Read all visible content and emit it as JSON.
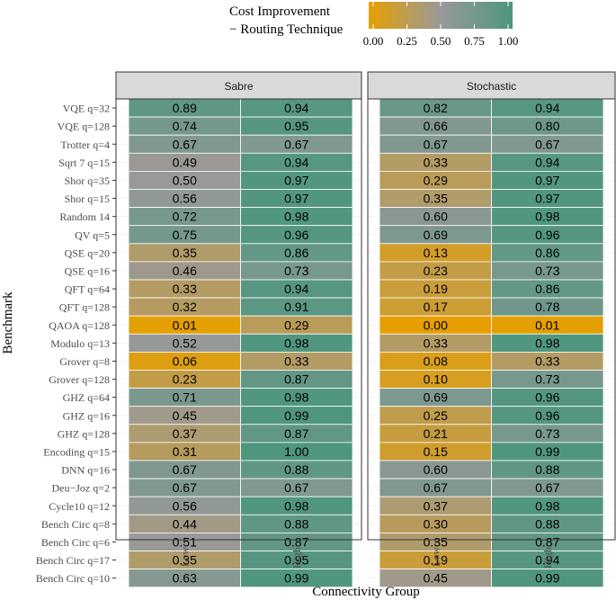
{
  "chart_data": {
    "type": "heatmap",
    "legend": {
      "title_line1": "Cost Improvement",
      "title_line2": "− Routing Technique",
      "ticks": [
        "0.00",
        "0.25",
        "0.50",
        "0.75",
        "1.00"
      ],
      "tick_values": [
        0,
        0.25,
        0.5,
        0.75,
        1
      ],
      "colors": {
        "low": "#E69F00",
        "mid": "#999999",
        "high": "#4E967E"
      },
      "placement": "top"
    },
    "xlabel": "Connectivity Group",
    "ylabel": "Benchmark",
    "x_categories": [
      "Low",
      "High"
    ],
    "panels": [
      "Sabre",
      "Stochastic"
    ],
    "benchmarks": [
      "VQE q=32",
      "VQE q=128",
      "Trotter q=4",
      "Sqrt 7 q=15",
      "Shor q=35",
      "Shor q=15",
      "Random 14",
      "QV q=5",
      "QSE q=20",
      "QSE q=16",
      "QFT q=64",
      "QFT q=128",
      "QAOA q=128",
      "Modulo q=13",
      "Grover q=8",
      "Grover q=128",
      "GHZ q=64",
      "GHZ q=16",
      "GHZ q=128",
      "Encoding q=15",
      "DNN q=16",
      "Deu−Joz q=2",
      "Cycle10 q=12",
      "Bench Circ q=8",
      "Bench Circ q=6",
      "Bench Circ q=17",
      "Bench Circ q=10"
    ],
    "values": {
      "Sabre": {
        "Low": [
          "0.89",
          "0.74",
          "0.67",
          "0.49",
          "0.50",
          "0.56",
          "0.72",
          "0.75",
          "0.35",
          "0.46",
          "0.33",
          "0.32",
          "0.01",
          "0.52",
          "0.06",
          "0.23",
          "0.71",
          "0.45",
          "0.37",
          "0.31",
          "0.67",
          "0.67",
          "0.56",
          "0.44",
          "0.51",
          "0.35",
          "0.63"
        ],
        "High": [
          "0.94",
          "0.95",
          "0.67",
          "0.94",
          "0.97",
          "0.97",
          "0.98",
          "0.96",
          "0.86",
          "0.73",
          "0.94",
          "0.91",
          "0.29",
          "0.98",
          "0.33",
          "0.87",
          "0.98",
          "0.99",
          "0.87",
          "1.00",
          "0.88",
          "0.67",
          "0.98",
          "0.88",
          "0.87",
          "0.95",
          "0.99"
        ]
      },
      "Stochastic": {
        "Low": [
          "0.82",
          "0.66",
          "0.67",
          "0.33",
          "0.29",
          "0.35",
          "0.60",
          "0.69",
          "0.13",
          "0.23",
          "0.19",
          "0.17",
          "0.00",
          "0.33",
          "0.08",
          "0.10",
          "0.69",
          "0.25",
          "0.21",
          "0.15",
          "0.60",
          "0.67",
          "0.37",
          "0.30",
          "0.35",
          "0.19",
          "0.45"
        ],
        "High": [
          "0.94",
          "0.80",
          "0.67",
          "0.94",
          "0.97",
          "0.97",
          "0.98",
          "0.96",
          "0.86",
          "0.73",
          "0.86",
          "0.78",
          "0.01",
          "0.98",
          "0.33",
          "0.73",
          "0.96",
          "0.96",
          "0.73",
          "0.99",
          "0.88",
          "0.67",
          "0.98",
          "0.88",
          "0.87",
          "0.94",
          "0.99"
        ]
      }
    }
  }
}
